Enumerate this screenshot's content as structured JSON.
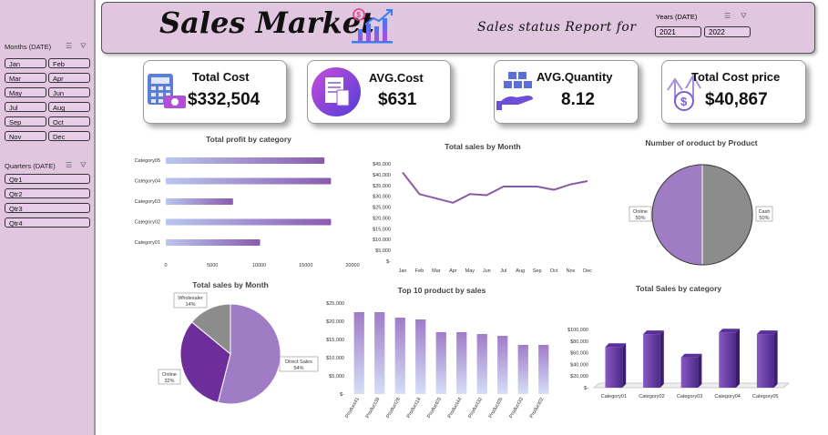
{
  "sidebar": {
    "months_title": "Months (DATE)",
    "months": [
      "Jan",
      "Feb",
      "Mar",
      "Apr",
      "May",
      "Jun",
      "Jul",
      "Aug",
      "Sep",
      "Oct",
      "Nov",
      "Dec"
    ],
    "quarters_title": "Quarters (DATE)",
    "quarters": [
      "Qtr1",
      "Qtr2",
      "Qtr3",
      "Qtr4"
    ]
  },
  "header": {
    "title": "Sales Market",
    "subtitle": "Sales status Report for",
    "years_title": "Years (DATE)",
    "years": [
      "2021",
      "2022"
    ]
  },
  "kpis": [
    {
      "label": "Total Cost",
      "value": "$332,504",
      "icon": "calculator-money-icon"
    },
    {
      "label": "AVG.Cost",
      "value": "$631",
      "icon": "receipt-icon"
    },
    {
      "label": "AVG.Quantity",
      "value": "8.12",
      "icon": "boxes-hand-icon"
    },
    {
      "label": "Total Cost price",
      "value": "$40,867",
      "icon": "money-arrows-icon"
    }
  ],
  "colors": {
    "accent": "#7b3fa0",
    "header_bg": "#e1c6e0",
    "line": "#8a5aa8",
    "pie_purple": "#a07cc5",
    "pie_gray": "#8c8c8c",
    "pie_dark": "#6d2d9a"
  },
  "chart_data": [
    {
      "type": "bar",
      "orientation": "horizontal",
      "title": "Total profit by category",
      "categories": [
        "Category05",
        "Category04",
        "Category03",
        "Category02",
        "Category01"
      ],
      "values": [
        17000,
        17700,
        7200,
        17700,
        10100
      ],
      "xticks": [
        "0",
        "5000",
        "10000",
        "15000",
        "20000"
      ],
      "xlim": [
        0,
        20000
      ]
    },
    {
      "type": "line",
      "title": "Total sales by Month",
      "categories": [
        "Jan",
        "Feb",
        "Mar",
        "Apr",
        "May",
        "Jun",
        "Jul",
        "Aug",
        "Sep",
        "Oct",
        "Nov",
        "Dec"
      ],
      "values": [
        41000,
        31000,
        29000,
        27000,
        31000,
        30500,
        34500,
        34500,
        34500,
        33000,
        35500,
        37000
      ],
      "yticks": [
        "$45,000",
        "$40,000",
        "$35,000",
        "$30,000",
        "$25,000",
        "$20,000",
        "$15,000",
        "$10,000",
        "$5,000",
        "$-"
      ],
      "ylim": [
        0,
        45000
      ]
    },
    {
      "type": "pie",
      "title": "Number of oroduct by Product",
      "slices": [
        {
          "label": "Online",
          "pct": "50%",
          "value": 50
        },
        {
          "label": "Cash",
          "pct": "50%",
          "value": 50
        }
      ]
    },
    {
      "type": "pie",
      "title": "Total sales by Month",
      "slices": [
        {
          "label": "Direct Sales",
          "pct": "54%",
          "value": 54
        },
        {
          "label": "Online",
          "pct": "32%",
          "value": 32
        },
        {
          "label": "Wholesaler",
          "pct": "14%",
          "value": 14
        }
      ]
    },
    {
      "type": "bar",
      "title": "Top 10 product by sales",
      "categories": [
        "Product41",
        "Product39",
        "Product28",
        "Product18",
        "Product03",
        "Product44",
        "Product32",
        "Product05",
        "Product33",
        "Product02"
      ],
      "values": [
        22500,
        22500,
        21000,
        20500,
        17000,
        17000,
        16500,
        16000,
        13500,
        13500
      ],
      "yticks": [
        "$25,000",
        "$20,000",
        "$15,000",
        "$10,000",
        "$5,000",
        "$-"
      ],
      "ylim": [
        0,
        25000
      ]
    },
    {
      "type": "bar",
      "title": "Total Sales by category",
      "categories": [
        "Category01",
        "Category02",
        "Category03",
        "Category04",
        "Category05"
      ],
      "values": [
        70000,
        92000,
        52000,
        95000,
        92000
      ],
      "yticks": [
        "$100,000",
        "$80,000",
        "$60,000",
        "$40,000",
        "$20,000",
        "$-"
      ],
      "ylim": [
        0,
        100000
      ]
    }
  ]
}
